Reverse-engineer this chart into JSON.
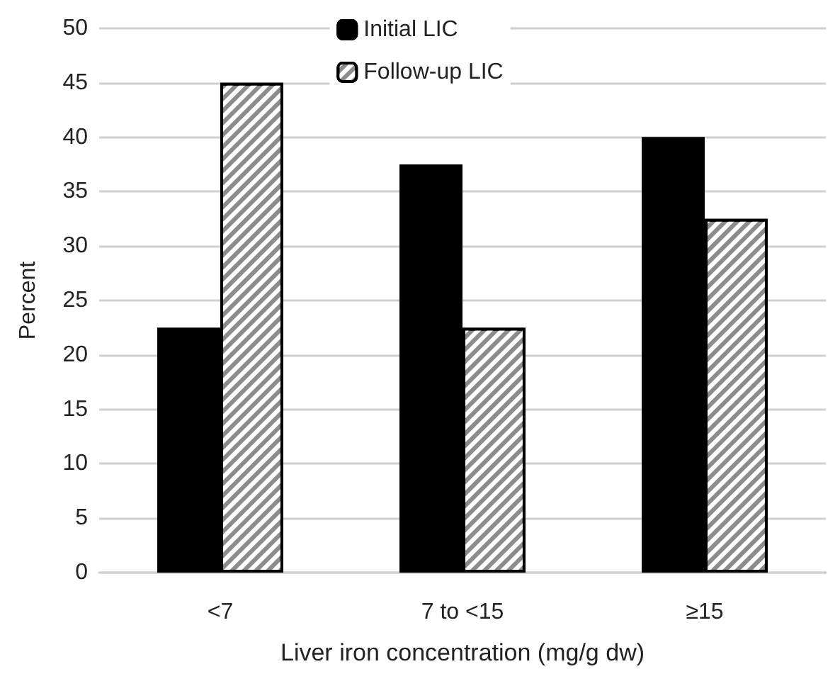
{
  "chart_data": {
    "type": "bar",
    "xlabel": "Liver iron concentration (mg/g dw)",
    "ylabel": "Percent",
    "categories": [
      "<7",
      "7 to <15",
      "≥15"
    ],
    "series": [
      {
        "name": "Initial LIC",
        "color": "#000000",
        "values": [
          22.5,
          37.5,
          40
        ]
      },
      {
        "name": "Follow-up LIC",
        "color": "#8c8c8c",
        "values": [
          45,
          22.5,
          32.5
        ]
      }
    ],
    "ylim": [
      0,
      50
    ],
    "yticks": [
      0,
      5,
      10,
      15,
      20,
      25,
      30,
      35,
      40,
      45,
      50
    ],
    "grid": "y",
    "legend": "top"
  }
}
